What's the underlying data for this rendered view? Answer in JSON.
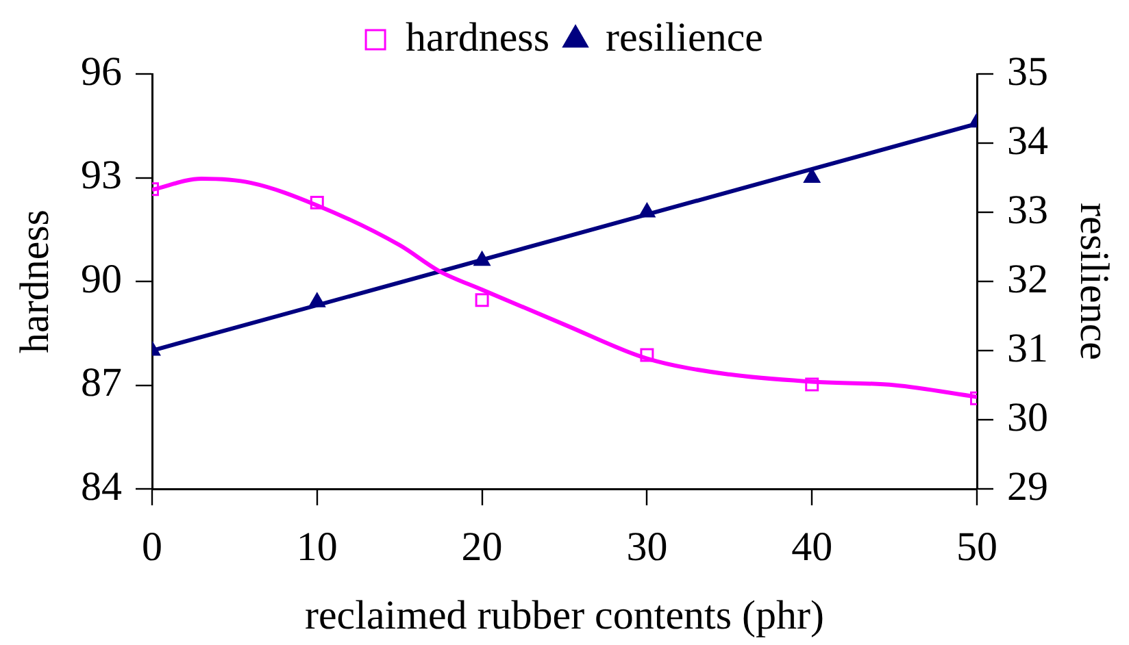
{
  "chart_data": {
    "type": "scatter",
    "xlabel": "reclaimed rubber contents (phr)",
    "ylabel": "hardness",
    "y2label": "resilience",
    "x": [
      0,
      10,
      20,
      30,
      40,
      50
    ],
    "series": [
      {
        "name": "hardness",
        "type": "scatter",
        "color": "#ff00ff",
        "marker": "square",
        "values": [
          92.67,
          92.28,
          89.46,
          87.87,
          87.02,
          86.62
        ]
      },
      {
        "type": "line",
        "color": "#ff00ff",
        "marker": "none",
        "x": [
          0,
          3,
          6,
          10,
          15,
          17.4,
          20,
          25,
          30,
          35,
          40,
          45,
          50
        ],
        "values": [
          92.65,
          92.97,
          92.85,
          92.2,
          91.05,
          90.3,
          89.76,
          88.75,
          87.77,
          87.31,
          87.1,
          87.0,
          86.66
        ]
      },
      {
        "name": "resilience",
        "type": "scatter",
        "color": "#000080",
        "marker": "triangle",
        "axis": "y2",
        "values": [
          31.0,
          31.7,
          32.3,
          33.0,
          33.5,
          34.3
        ]
      },
      {
        "type": "line",
        "color": "#000080",
        "marker": "none",
        "axis": "y2",
        "x": [
          0,
          50
        ],
        "values": [
          31.0,
          34.28
        ]
      }
    ],
    "xlim": [
      0,
      50
    ],
    "xticks": [
      0,
      10,
      20,
      30,
      40,
      50
    ],
    "ylim": [
      84,
      96
    ],
    "yticks": [
      84,
      87,
      90,
      93,
      96
    ],
    "y2lim": [
      29,
      35
    ],
    "y2ticks": [
      29,
      30,
      31,
      32,
      33,
      34,
      35
    ],
    "grid": false,
    "legend": "top"
  }
}
